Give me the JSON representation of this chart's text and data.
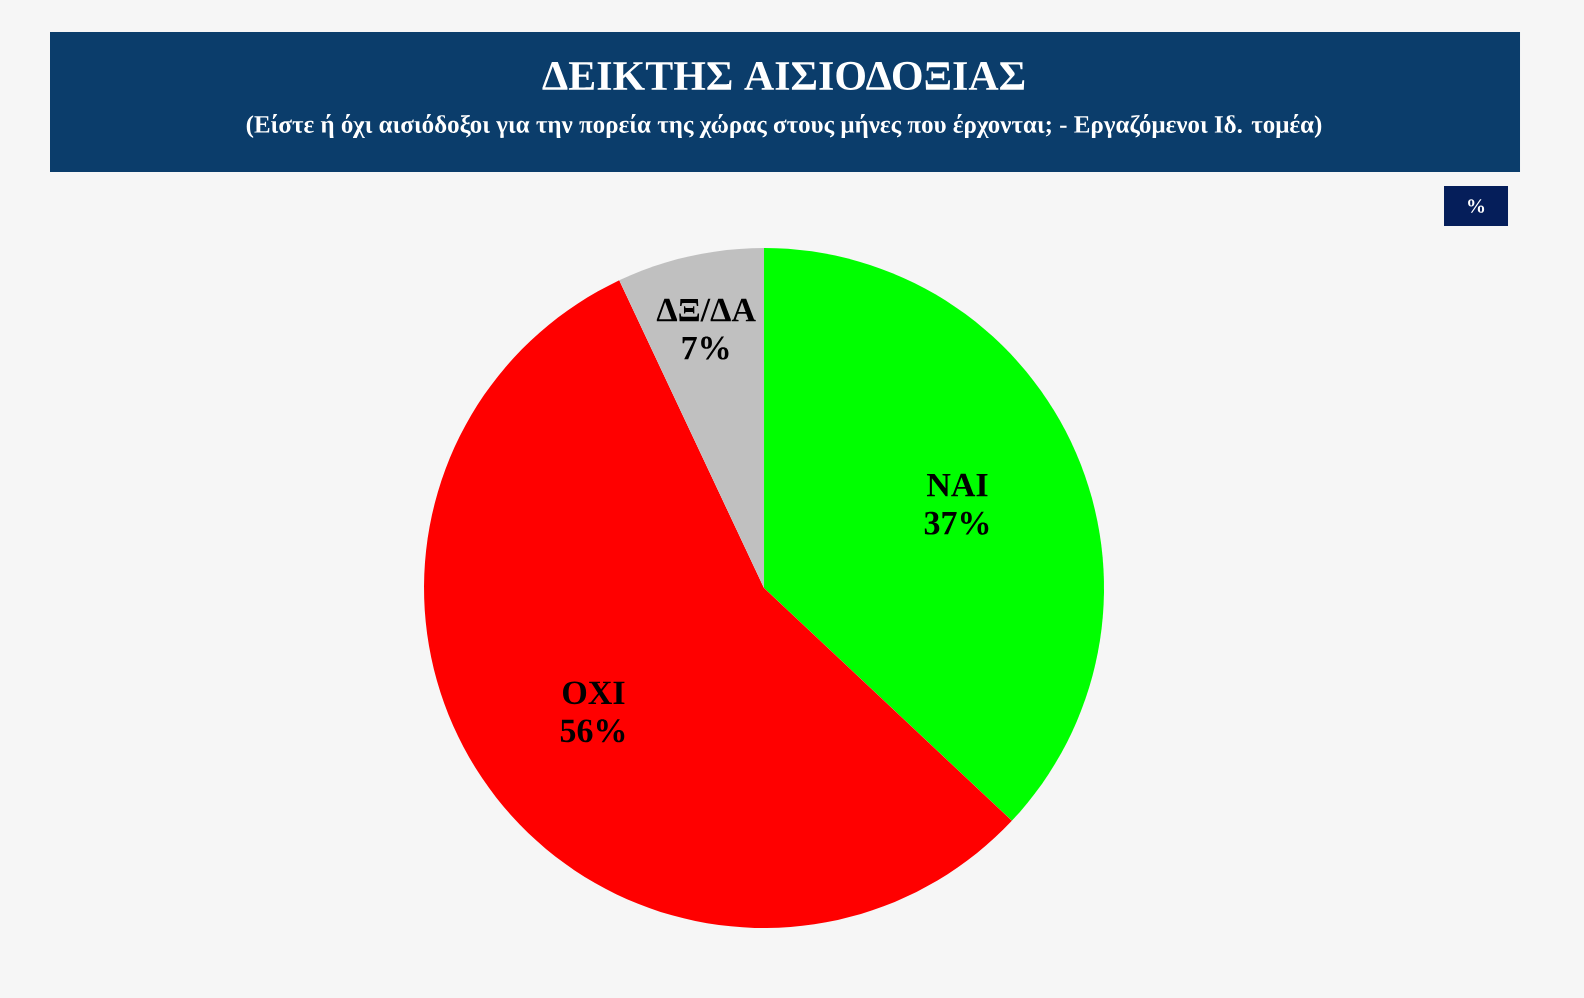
{
  "chart_data": {
    "type": "pie",
    "title": "ΔΕΙΚΤΗΣ ΑΙΣΙΟΔΟΞΙΑΣ",
    "subtitle": "(Είστε ή όχι αισιόδοξοι για την πορεία της χώρας στους  μήνες που έρχονται; - Εργαζόμενοι Ιδ. τομέα)",
    "categories": [
      "ΝΑΙ",
      "ΟΧΙ",
      "ΔΞ/ΔΑ"
    ],
    "values": [
      37,
      56,
      7
    ],
    "colors": [
      "#00ff00",
      "#ff0000",
      "#c0c0c0"
    ],
    "value_labels": [
      "37%",
      "56%",
      "7%"
    ],
    "annotations": [
      "%"
    ]
  }
}
